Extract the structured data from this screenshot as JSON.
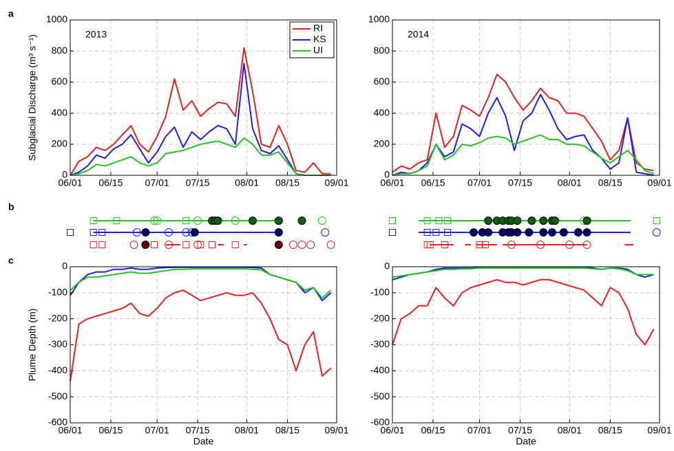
{
  "chart_data": [
    {
      "type": "line",
      "panel_label": "a",
      "annotation": "2013",
      "ylabel": "Subglacial Discharge (m³ s⁻¹)",
      "legend": "upper right",
      "grid": true,
      "x": [
        "06/01",
        "06/04",
        "06/07",
        "06/10",
        "06/13",
        "06/16",
        "06/19",
        "06/22",
        "06/25",
        "06/28",
        "07/01",
        "07/04",
        "07/07",
        "07/10",
        "07/13",
        "07/16",
        "07/19",
        "07/22",
        "07/25",
        "07/28",
        "07/31",
        "08/03",
        "08/06",
        "08/09",
        "08/12",
        "08/15",
        "08/18",
        "08/21",
        "08/24",
        "08/27",
        "08/30"
      ],
      "xlim": [
        "06/01",
        "09/01"
      ],
      "xticks": [
        "06/01",
        "06/15",
        "07/01",
        "07/15",
        "08/01",
        "08/15",
        "09/01"
      ],
      "ylim": [
        0,
        1000
      ],
      "yticks": [
        0,
        200,
        400,
        600,
        800,
        1000
      ],
      "series": [
        {
          "name": "RI",
          "color": "#ee1c1c",
          "values": [
            0,
            90,
            120,
            180,
            160,
            200,
            260,
            320,
            200,
            150,
            250,
            380,
            620,
            420,
            480,
            380,
            430,
            470,
            460,
            380,
            820,
            540,
            200,
            180,
            320,
            200,
            30,
            20,
            80,
            10,
            10
          ]
        },
        {
          "name": "KS",
          "color": "#1c1cee",
          "values": [
            0,
            20,
            60,
            130,
            110,
            170,
            200,
            260,
            170,
            80,
            150,
            250,
            310,
            180,
            280,
            230,
            280,
            320,
            300,
            200,
            720,
            300,
            160,
            140,
            190,
            100,
            10,
            0,
            0,
            0,
            0
          ]
        },
        {
          "name": "UI",
          "color": "#22c422",
          "values": [
            0,
            10,
            30,
            70,
            60,
            80,
            100,
            120,
            80,
            60,
            80,
            140,
            150,
            160,
            180,
            200,
            210,
            220,
            200,
            180,
            240,
            200,
            130,
            130,
            150,
            80,
            10,
            0,
            0,
            0,
            0
          ]
        }
      ]
    },
    {
      "type": "line",
      "annotation": "2014",
      "grid": true,
      "x": [
        "06/01",
        "06/04",
        "06/07",
        "06/10",
        "06/13",
        "06/16",
        "06/19",
        "06/22",
        "06/25",
        "06/28",
        "07/01",
        "07/04",
        "07/07",
        "07/10",
        "07/13",
        "07/16",
        "07/19",
        "07/22",
        "07/25",
        "07/28",
        "07/31",
        "08/03",
        "08/06",
        "08/09",
        "08/12",
        "08/15",
        "08/18",
        "08/21",
        "08/24",
        "08/27",
        "08/30"
      ],
      "xlim": [
        "06/01",
        "09/01"
      ],
      "xticks": [
        "06/01",
        "06/15",
        "07/01",
        "07/15",
        "08/01",
        "08/15",
        "09/01"
      ],
      "ylim": [
        0,
        1000
      ],
      "yticks": [
        0,
        200,
        400,
        600,
        800,
        1000
      ],
      "series": [
        {
          "color": "#ee1c1c",
          "values": [
            20,
            60,
            40,
            80,
            100,
            400,
            180,
            250,
            450,
            420,
            380,
            500,
            650,
            600,
            500,
            420,
            480,
            560,
            500,
            480,
            400,
            400,
            380,
            300,
            220,
            100,
            160,
            370,
            80,
            40,
            30
          ]
        },
        {
          "color": "#1c1cee",
          "values": [
            0,
            20,
            10,
            30,
            80,
            200,
            120,
            150,
            330,
            300,
            250,
            400,
            500,
            380,
            160,
            350,
            400,
            520,
            420,
            300,
            230,
            250,
            260,
            160,
            110,
            40,
            80,
            370,
            20,
            10,
            0
          ]
        },
        {
          "color": "#22c422",
          "values": [
            0,
            10,
            10,
            30,
            60,
            200,
            100,
            130,
            200,
            190,
            210,
            240,
            250,
            240,
            200,
            220,
            240,
            260,
            230,
            230,
            200,
            200,
            190,
            150,
            110,
            80,
            120,
            160,
            100,
            30,
            10
          ]
        }
      ]
    },
    {
      "type": "timeline",
      "panel_label": "b",
      "xlim": [
        "06/01",
        "09/01"
      ],
      "series": [
        {
          "color": "#22c422",
          "fill_color": "#0f5f0f",
          "segments": [
            [
              "06/09",
              "08/12"
            ]
          ],
          "open_squares": [
            "06/09",
            "06/17",
            "07/11"
          ],
          "open_circles": [
            "06/30",
            "07/01",
            "07/15",
            "07/28",
            "08/27"
          ],
          "filled_circles": [
            "07/20",
            "07/21",
            "07/22",
            "08/03",
            "08/12",
            "08/20"
          ]
        },
        {
          "color": "#1c1cee",
          "fill_color": "#00006b",
          "segments": [
            [
              "06/09",
              "08/12"
            ]
          ],
          "open_squares": [
            "06/01",
            "06/09",
            "06/12"
          ],
          "open_circles": [
            "06/24",
            "07/05",
            "07/11",
            "07/13",
            "08/28"
          ],
          "filled_circles": [
            "06/27",
            "07/14",
            "08/12"
          ]
        },
        {
          "color": "#ee1c1c",
          "fill_color": "#6b0000",
          "segments": [
            [
              "07/04",
              "07/09"
            ],
            [
              "07/22",
              "07/24"
            ],
            [
              "07/31",
              "08/01"
            ]
          ],
          "open_squares": [
            "06/09",
            "06/12",
            "06/30",
            "07/11",
            "07/16",
            "07/20",
            "07/28"
          ],
          "open_circles": [
            "06/23",
            "07/05",
            "07/15",
            "08/17",
            "08/20",
            "08/23",
            "08/30"
          ],
          "filled_circles": [
            "06/27",
            "08/12"
          ]
        }
      ]
    },
    {
      "type": "timeline",
      "xlim": [
        "06/01",
        "09/01"
      ],
      "series": [
        {
          "color": "#22c422",
          "fill_color": "#0f5f0f",
          "segments": [
            [
              "06/10",
              "08/22"
            ]
          ],
          "open_squares": [
            "06/01",
            "06/13",
            "06/17",
            "06/20",
            "08/31"
          ],
          "open_circles": [
            "08/06"
          ],
          "filled_circles": [
            "07/04",
            "07/07",
            "07/09",
            "07/11",
            "07/12",
            "07/14",
            "07/19",
            "07/23",
            "07/26",
            "07/27",
            "08/07"
          ]
        },
        {
          "color": "#1c1cee",
          "fill_color": "#00006b",
          "segments": [
            [
              "06/10",
              "08/22"
            ]
          ],
          "open_squares": [
            "06/01",
            "06/13",
            "06/16",
            "06/20"
          ],
          "open_circles": [
            "08/31"
          ],
          "filled_circles": [
            "06/29",
            "07/02",
            "07/04",
            "07/09",
            "07/11",
            "07/12",
            "07/14",
            "07/18",
            "07/23",
            "07/26",
            "07/30",
            "08/04",
            "08/07"
          ]
        },
        {
          "color": "#ee1c1c",
          "fill_color": "#6b0000",
          "segments": [
            [
              "06/14",
              "06/22"
            ],
            [
              "06/26",
              "06/28"
            ],
            [
              "06/30",
              "07/07"
            ],
            [
              "07/09",
              "08/07"
            ],
            [
              "08/20",
              "08/23"
            ]
          ],
          "open_squares": [
            "06/13",
            "06/14",
            "06/19",
            "07/01",
            "07/03"
          ],
          "open_circles": [
            "07/12",
            "07/22",
            "08/01",
            "08/07"
          ],
          "filled_circles": []
        }
      ]
    },
    {
      "type": "line",
      "panel_label": "c",
      "ylabel": "Plume Depth (m)",
      "xlabel": "Date",
      "grid": true,
      "x": [
        "06/01",
        "06/04",
        "06/07",
        "06/10",
        "06/13",
        "06/16",
        "06/19",
        "06/22",
        "06/25",
        "06/28",
        "07/01",
        "07/04",
        "07/07",
        "07/10",
        "07/13",
        "07/16",
        "07/19",
        "07/22",
        "07/25",
        "07/28",
        "07/31",
        "08/03",
        "08/06",
        "08/09",
        "08/12",
        "08/15",
        "08/18",
        "08/21",
        "08/24",
        "08/27",
        "08/30"
      ],
      "xlim": [
        "06/01",
        "09/01"
      ],
      "xticks": [
        "06/01",
        "06/15",
        "07/01",
        "07/15",
        "08/01",
        "08/15",
        "09/01"
      ],
      "ylim": [
        -600,
        0
      ],
      "yticks": [
        0,
        -100,
        -200,
        -300,
        -400,
        -500,
        -600
      ],
      "series": [
        {
          "color": "#ee1c1c",
          "values": [
            -440,
            -220,
            -200,
            -190,
            -180,
            -170,
            -160,
            -140,
            -180,
            -190,
            -160,
            -120,
            -100,
            -90,
            -110,
            -130,
            -120,
            -110,
            -100,
            -110,
            -110,
            -100,
            -140,
            -200,
            -280,
            -300,
            -400,
            -300,
            -250,
            -420,
            -390
          ]
        },
        {
          "color": "#1c1cee",
          "values": [
            -110,
            -60,
            -30,
            -20,
            -20,
            -10,
            -10,
            -5,
            -10,
            -10,
            -5,
            -3,
            -2,
            -2,
            -2,
            -2,
            -2,
            -2,
            -2,
            -2,
            -2,
            -3,
            -5,
            -30,
            -40,
            -50,
            -60,
            -100,
            -80,
            -130,
            -100
          ]
        },
        {
          "color": "#22c422",
          "values": [
            -90,
            -60,
            -40,
            -40,
            -35,
            -30,
            -25,
            -20,
            -25,
            -25,
            -20,
            -15,
            -10,
            -10,
            -8,
            -8,
            -8,
            -8,
            -8,
            -8,
            -8,
            -10,
            -12,
            -30,
            -40,
            -50,
            -60,
            -90,
            -80,
            -120,
            -90
          ]
        }
      ]
    },
    {
      "type": "line",
      "xlabel": "Date",
      "grid": true,
      "x": [
        "06/01",
        "06/04",
        "06/07",
        "06/10",
        "06/13",
        "06/16",
        "06/19",
        "06/22",
        "06/25",
        "06/28",
        "07/01",
        "07/04",
        "07/07",
        "07/10",
        "07/13",
        "07/16",
        "07/19",
        "07/22",
        "07/25",
        "07/28",
        "07/31",
        "08/03",
        "08/06",
        "08/09",
        "08/12",
        "08/15",
        "08/18",
        "08/21",
        "08/24",
        "08/27",
        "08/30"
      ],
      "xlim": [
        "06/01",
        "09/01"
      ],
      "xticks": [
        "06/01",
        "06/15",
        "07/01",
        "07/15",
        "08/01",
        "08/15",
        "09/01"
      ],
      "ylim": [
        -600,
        0
      ],
      "yticks": [
        0,
        -100,
        -200,
        -300,
        -400,
        -500,
        -600
      ],
      "series": [
        {
          "color": "#ee1c1c",
          "values": [
            -300,
            -200,
            -180,
            -150,
            -150,
            -80,
            -120,
            -150,
            -100,
            -80,
            -70,
            -60,
            -50,
            -60,
            -60,
            -70,
            -60,
            -50,
            -50,
            -60,
            -70,
            -80,
            -90,
            -120,
            -150,
            -80,
            -100,
            -160,
            -260,
            -300,
            -240
          ]
        },
        {
          "color": "#1c1cee",
          "values": [
            -50,
            -40,
            -30,
            -25,
            -20,
            -10,
            -5,
            -5,
            -5,
            -5,
            -3,
            -2,
            -2,
            -2,
            -2,
            -2,
            -2,
            -2,
            -2,
            -2,
            -2,
            -2,
            -2,
            -5,
            -10,
            -5,
            -5,
            -10,
            -30,
            -40,
            -30
          ]
        },
        {
          "color": "#22c422",
          "values": [
            -40,
            -35,
            -30,
            -25,
            -20,
            -15,
            -10,
            -10,
            -8,
            -8,
            -5,
            -5,
            -5,
            -5,
            -5,
            -5,
            -5,
            -5,
            -5,
            -5,
            -5,
            -5,
            -5,
            -8,
            -10,
            -5,
            -8,
            -15,
            -30,
            -30,
            -30
          ]
        }
      ]
    }
  ]
}
